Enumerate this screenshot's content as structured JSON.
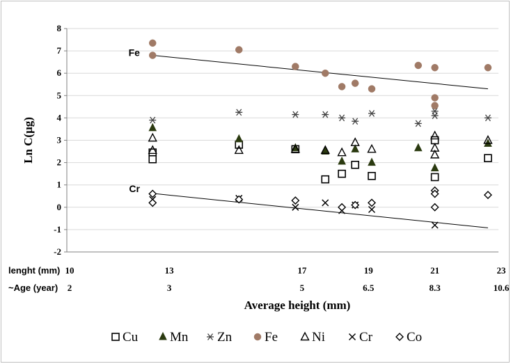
{
  "chart_data": {
    "type": "scatter",
    "ylabel": "Ln C(μg)",
    "xlabel": "Average height (mm)",
    "ylim": [
      -2,
      8
    ],
    "yticks": [
      -2,
      -1,
      0,
      1,
      2,
      3,
      4,
      5,
      6,
      7,
      8
    ],
    "xlim": [
      10,
      23
    ],
    "grid": "horizontal",
    "legend_position": "bottom",
    "colors": {
      "Cu": "#000000",
      "Mn": "#000000",
      "Zn": "#404040",
      "Fe": "#a07a66",
      "Ni": "#000000",
      "Cr": "#000000",
      "Co": "#000000"
    },
    "x_rows": [
      {
        "label": "lenght  (mm)",
        "ticks": [
          {
            "x": 10,
            "text": "10"
          },
          {
            "x": 13,
            "text": "13"
          },
          {
            "x": 17,
            "text": "17"
          },
          {
            "x": 19,
            "text": "19"
          },
          {
            "x": 21,
            "text": "21"
          },
          {
            "x": 23,
            "text": "23"
          }
        ]
      },
      {
        "label": "~Age (year)",
        "ticks": [
          {
            "x": 10,
            "text": "2"
          },
          {
            "x": 13,
            "text": "3"
          },
          {
            "x": 17,
            "text": "5"
          },
          {
            "x": 19,
            "text": "6.5"
          },
          {
            "x": 21,
            "text": "8.3"
          },
          {
            "x": 23,
            "text": "10.6"
          }
        ]
      }
    ],
    "annotations": [
      {
        "text": "Fe",
        "x": 12.2,
        "y": 6.9
      },
      {
        "text": "Cr",
        "x": 12.2,
        "y": 0.8
      }
    ],
    "trendlines": [
      {
        "name": "Fe",
        "x1": 12.5,
        "y1": 6.8,
        "x2": 22.6,
        "y2": 5.3
      },
      {
        "name": "Cr",
        "x1": 12.5,
        "y1": 0.62,
        "x2": 22.6,
        "y2": -0.92
      }
    ],
    "series": [
      {
        "name": "Cu",
        "marker": "square",
        "points": [
          [
            12.5,
            2.45
          ],
          [
            12.5,
            2.15
          ],
          [
            15.1,
            2.8
          ],
          [
            16.8,
            2.6
          ],
          [
            17.7,
            1.25
          ],
          [
            18.2,
            1.5
          ],
          [
            18.6,
            1.9
          ],
          [
            19.1,
            1.4
          ],
          [
            21.0,
            3.0
          ],
          [
            21.0,
            1.35
          ],
          [
            22.6,
            2.2
          ]
        ]
      },
      {
        "name": "Mn",
        "marker": "triangle-filled",
        "points": [
          [
            12.5,
            3.55
          ],
          [
            15.1,
            3.05
          ],
          [
            16.8,
            2.65
          ],
          [
            17.7,
            2.5
          ],
          [
            18.2,
            2.05
          ],
          [
            18.6,
            2.6
          ],
          [
            19.1,
            2.0
          ],
          [
            20.5,
            2.65
          ],
          [
            21.0,
            1.75
          ],
          [
            22.6,
            2.85
          ]
        ]
      },
      {
        "name": "Zn",
        "marker": "star",
        "points": [
          [
            12.5,
            3.9
          ],
          [
            15.1,
            4.25
          ],
          [
            16.8,
            4.15
          ],
          [
            17.7,
            4.15
          ],
          [
            18.2,
            4.0
          ],
          [
            18.6,
            3.85
          ],
          [
            19.1,
            4.2
          ],
          [
            20.5,
            3.75
          ],
          [
            21.0,
            4.1
          ],
          [
            21.0,
            4.3
          ],
          [
            22.6,
            4.0
          ]
        ]
      },
      {
        "name": "Fe",
        "marker": "circle-filled",
        "points": [
          [
            12.5,
            7.35
          ],
          [
            12.5,
            6.8
          ],
          [
            15.1,
            7.05
          ],
          [
            16.8,
            6.3
          ],
          [
            17.7,
            6.0
          ],
          [
            18.2,
            5.4
          ],
          [
            18.6,
            5.55
          ],
          [
            19.1,
            5.3
          ],
          [
            20.5,
            6.35
          ],
          [
            21.0,
            6.25
          ],
          [
            21.0,
            4.9
          ],
          [
            21.0,
            4.55
          ],
          [
            22.6,
            6.25
          ]
        ]
      },
      {
        "name": "Ni",
        "marker": "triangle-open",
        "points": [
          [
            12.5,
            3.1
          ],
          [
            12.5,
            2.55
          ],
          [
            15.1,
            2.55
          ],
          [
            16.8,
            2.6
          ],
          [
            17.7,
            2.55
          ],
          [
            18.2,
            2.45
          ],
          [
            18.6,
            2.9
          ],
          [
            19.1,
            2.6
          ],
          [
            21.0,
            3.2
          ],
          [
            21.0,
            2.65
          ],
          [
            21.0,
            2.35
          ],
          [
            22.6,
            3.0
          ]
        ]
      },
      {
        "name": "Cr",
        "marker": "x",
        "points": [
          [
            12.5,
            0.35
          ],
          [
            15.1,
            0.4
          ],
          [
            16.8,
            0.0
          ],
          [
            17.7,
            0.2
          ],
          [
            18.2,
            -0.15
          ],
          [
            18.6,
            0.1
          ],
          [
            19.1,
            -0.1
          ],
          [
            21.0,
            -0.8
          ]
        ]
      },
      {
        "name": "Co",
        "marker": "diamond",
        "points": [
          [
            12.5,
            0.6
          ],
          [
            12.5,
            0.2
          ],
          [
            15.1,
            0.35
          ],
          [
            16.8,
            0.3
          ],
          [
            18.2,
            0.0
          ],
          [
            18.6,
            0.1
          ],
          [
            19.1,
            0.2
          ],
          [
            21.0,
            0.75
          ],
          [
            21.0,
            0.6
          ],
          [
            21.0,
            0.0
          ],
          [
            22.6,
            0.55
          ]
        ]
      }
    ]
  }
}
